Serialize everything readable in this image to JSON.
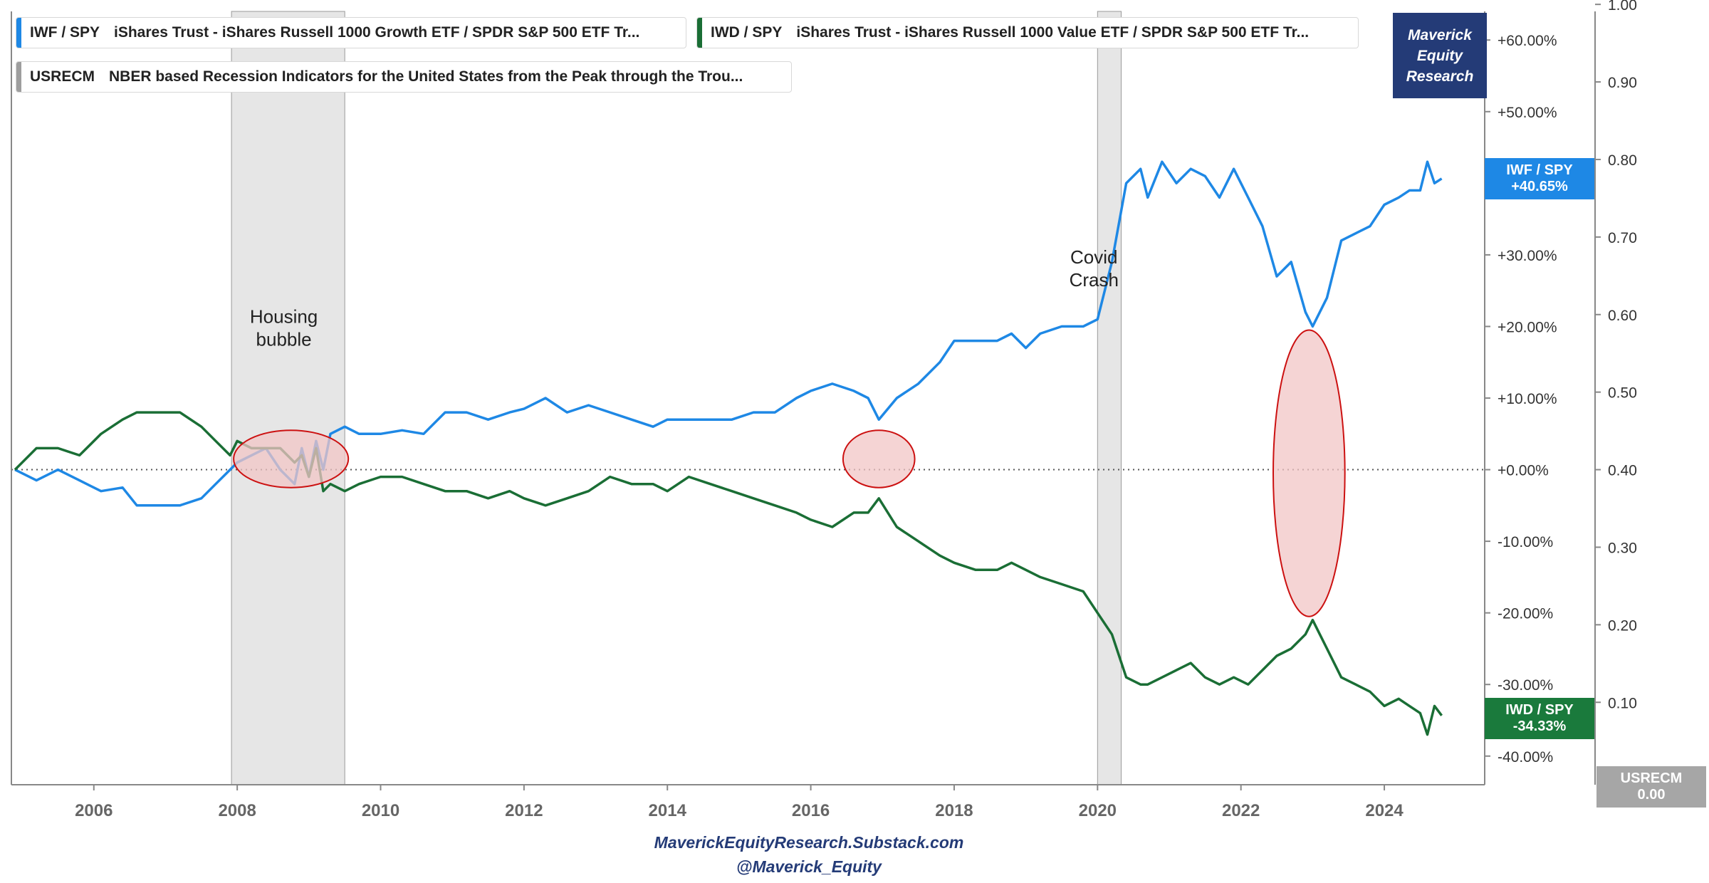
{
  "legend": [
    {
      "symbol": "IWF / SPY",
      "desc": "iShares Trust - iShares Russell 1000 Growth ETF / SPDR S&P 500 ETF Tr...",
      "color": "#1e88e5"
    },
    {
      "symbol": "IWD / SPY",
      "desc": "iShares Trust - iShares Russell 1000 Value ETF / SPDR S&P 500 ETF Tr...",
      "color": "#1a6e35"
    },
    {
      "symbol": "USRECM",
      "desc": "NBER based Recession Indicators for the United States from the Peak through the Trou...",
      "color": "#9e9e9e"
    }
  ],
  "brand": {
    "line1": "Maverick",
    "line2": "Equity",
    "line3": "Research"
  },
  "footer": {
    "line1": "MaverickEquityResearch.Substack.com",
    "line2": "@Maverick_Equity"
  },
  "tags": {
    "iwf": {
      "line1": "IWF / SPY",
      "line2": "+40.65%",
      "color": "#1e88e5"
    },
    "iwd": {
      "line1": "IWD / SPY",
      "line2": "-34.33%",
      "color": "#1a7a3c"
    },
    "usrecm": {
      "line1": "USRECM",
      "line2": "0.00",
      "color": "#a6a6a6"
    }
  },
  "colors": {
    "iwf": "#1e88e5",
    "iwd": "#1a6e35",
    "recession_fill": "#e6e6e6",
    "highlight_fill": "#f2c6c6",
    "highlight_stroke": "#cc1111"
  },
  "chart_data": {
    "type": "line",
    "x_range": [
      2004.85,
      2025.4
    ],
    "x_ticks": [
      2006,
      2008,
      2010,
      2012,
      2014,
      2016,
      2018,
      2020,
      2022,
      2024
    ],
    "y_percent_ticks": [
      "+60.00%",
      "+50.00%",
      "+40.00%",
      "+30.00%",
      "+20.00%",
      "+10.00%",
      "+0.00%",
      "-10.00%",
      "-20.00%",
      "-30.00%",
      "-40.00%"
    ],
    "y_percent_range": [
      -44,
      64
    ],
    "usrecm_ticks": [
      "1.00",
      "0.90",
      "0.80",
      "0.70",
      "0.60",
      "0.50",
      "0.40",
      "0.30",
      "0.20",
      "0.10"
    ],
    "recessions": [
      [
        2007.92,
        2009.5
      ],
      [
        2020.0,
        2020.33
      ]
    ],
    "annotations": [
      {
        "line1": "Housing",
        "line2": "bubble",
        "x": 2008.65,
        "y": 20.5
      },
      {
        "line1": "Covid",
        "line2": "Crash",
        "x": 2019.95,
        "y": 28.8
      }
    ],
    "highlights": [
      {
        "x": 2008.75,
        "y": 1.5,
        "rx": 0.8,
        "ry": 4
      },
      {
        "x": 2016.95,
        "y": 1.5,
        "rx": 0.5,
        "ry": 4
      },
      {
        "x": 2022.95,
        "y": -0.5,
        "rx": 0.5,
        "ry": 20
      }
    ],
    "series": [
      {
        "name": "IWF / SPY",
        "x": [
          2004.9,
          2005.2,
          2005.5,
          2005.8,
          2006.1,
          2006.4,
          2006.6,
          2006.9,
          2007.2,
          2007.5,
          2007.7,
          2007.9,
          2008.0,
          2008.2,
          2008.4,
          2008.6,
          2008.8,
          2008.9,
          2009.0,
          2009.1,
          2009.2,
          2009.3,
          2009.5,
          2009.7,
          2010.0,
          2010.3,
          2010.6,
          2010.9,
          2011.2,
          2011.5,
          2011.8,
          2012.0,
          2012.3,
          2012.6,
          2012.9,
          2013.2,
          2013.5,
          2013.8,
          2014.0,
          2014.3,
          2014.6,
          2014.9,
          2015.2,
          2015.5,
          2015.8,
          2016.0,
          2016.3,
          2016.6,
          2016.8,
          2016.95,
          2017.2,
          2017.5,
          2017.8,
          2018.0,
          2018.3,
          2018.6,
          2018.8,
          2019.0,
          2019.2,
          2019.5,
          2019.8,
          2020.0,
          2020.2,
          2020.4,
          2020.6,
          2020.7,
          2020.9,
          2021.1,
          2021.3,
          2021.5,
          2021.7,
          2021.9,
          2022.1,
          2022.3,
          2022.5,
          2022.7,
          2022.9,
          2023.0,
          2023.2,
          2023.4,
          2023.6,
          2023.8,
          2024.0,
          2024.2,
          2024.35,
          2024.5,
          2024.6,
          2024.7,
          2024.8
        ],
        "values": [
          0,
          -1.5,
          0,
          -1.5,
          -3,
          -2.5,
          -5,
          -5,
          -5,
          -4,
          -2,
          0,
          1,
          2,
          3,
          0,
          -2,
          3,
          -1,
          4,
          0,
          5,
          6,
          5,
          5,
          5.5,
          5,
          8,
          8,
          7,
          8,
          8.5,
          10,
          8,
          9,
          8,
          7,
          6,
          7,
          7,
          7,
          7,
          8,
          8,
          10,
          11,
          12,
          11,
          10,
          7,
          10,
          12,
          15,
          18,
          18,
          18,
          19,
          17,
          19,
          20,
          20,
          21,
          29,
          40,
          42,
          38,
          43,
          40,
          42,
          41,
          38,
          42,
          38,
          34,
          27,
          29,
          22,
          20,
          24,
          32,
          33,
          34,
          37,
          38,
          39,
          39,
          43,
          40,
          40.65
        ]
      },
      {
        "name": "IWD / SPY",
        "x": [
          2004.9,
          2005.2,
          2005.5,
          2005.8,
          2006.1,
          2006.4,
          2006.6,
          2006.9,
          2007.2,
          2007.5,
          2007.7,
          2007.9,
          2008.0,
          2008.2,
          2008.4,
          2008.6,
          2008.8,
          2008.9,
          2009.0,
          2009.1,
          2009.2,
          2009.3,
          2009.5,
          2009.7,
          2010.0,
          2010.3,
          2010.6,
          2010.9,
          2011.2,
          2011.5,
          2011.8,
          2012.0,
          2012.3,
          2012.6,
          2012.9,
          2013.2,
          2013.5,
          2013.8,
          2014.0,
          2014.3,
          2014.6,
          2014.9,
          2015.2,
          2015.5,
          2015.8,
          2016.0,
          2016.3,
          2016.6,
          2016.8,
          2016.95,
          2017.2,
          2017.5,
          2017.8,
          2018.0,
          2018.3,
          2018.6,
          2018.8,
          2019.0,
          2019.2,
          2019.5,
          2019.8,
          2020.0,
          2020.2,
          2020.4,
          2020.6,
          2020.7,
          2020.9,
          2021.1,
          2021.3,
          2021.5,
          2021.7,
          2021.9,
          2022.1,
          2022.3,
          2022.5,
          2022.7,
          2022.9,
          2023.0,
          2023.2,
          2023.4,
          2023.6,
          2023.8,
          2024.0,
          2024.2,
          2024.35,
          2024.5,
          2024.6,
          2024.7,
          2024.8
        ],
        "values": [
          0,
          3,
          3,
          2,
          5,
          7,
          8,
          8,
          8,
          6,
          4,
          2,
          4,
          3,
          3,
          3,
          1,
          2,
          -1,
          3,
          -3,
          -2,
          -3,
          -2,
          -1,
          -1,
          -2,
          -3,
          -3,
          -4,
          -3,
          -4,
          -5,
          -4,
          -3,
          -1,
          -2,
          -2,
          -3,
          -1,
          -2,
          -3,
          -4,
          -5,
          -6,
          -7,
          -8,
          -6,
          -6,
          -4,
          -8,
          -10,
          -12,
          -13,
          -14,
          -14,
          -13,
          -14,
          -15,
          -16,
          -17,
          -20,
          -23,
          -29,
          -30,
          -30,
          -29,
          -28,
          -27,
          -29,
          -30,
          -29,
          -30,
          -28,
          -26,
          -25,
          -23,
          -21,
          -25,
          -29,
          -30,
          -31,
          -33,
          -32,
          -33,
          -34,
          -37,
          -33,
          -34.33
        ]
      }
    ]
  }
}
